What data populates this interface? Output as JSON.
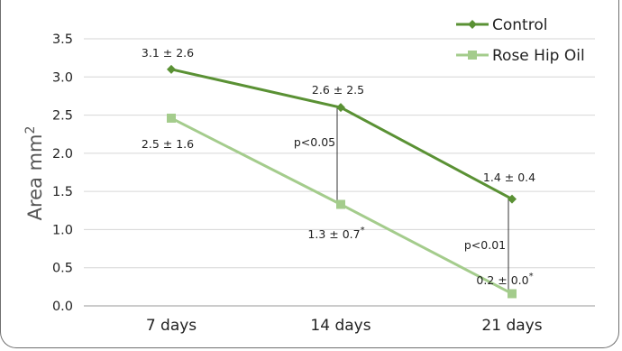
{
  "chart_data": {
    "type": "line",
    "categories": [
      "7 days",
      "14 days",
      "21 days"
    ],
    "ylabel": "Area mm",
    "ylabel_sup": "2",
    "ylim": [
      0,
      3.5
    ],
    "yticks": [
      "0.0",
      "0.5",
      "1.0",
      "1.5",
      "2.0",
      "2.5",
      "3.0",
      "3.5"
    ],
    "grid": true,
    "legend_position": "top-right",
    "series": [
      {
        "name": "Control",
        "color": "#5a9134",
        "marker": "diamond",
        "values": [
          3.1,
          2.6,
          1.4
        ],
        "labels": [
          "3.1 ± 2.6",
          "2.6 ± 2.5",
          "1.4 ± 0.4"
        ],
        "label_stars": [
          "",
          "",
          ""
        ]
      },
      {
        "name": "Rose Hip Oil",
        "color": "#a4cc8c",
        "marker": "square",
        "values": [
          2.46,
          1.33,
          0.16
        ],
        "labels": [
          "2.5 ± 1.6",
          "1.3 ± 0.7",
          "0.2 ± 0.0"
        ],
        "label_stars": [
          "",
          "*",
          "*"
        ]
      }
    ],
    "annotations": [
      {
        "category_index": 1,
        "text": "p<0.05"
      },
      {
        "category_index": 2,
        "text": "p<0.01"
      }
    ]
  }
}
